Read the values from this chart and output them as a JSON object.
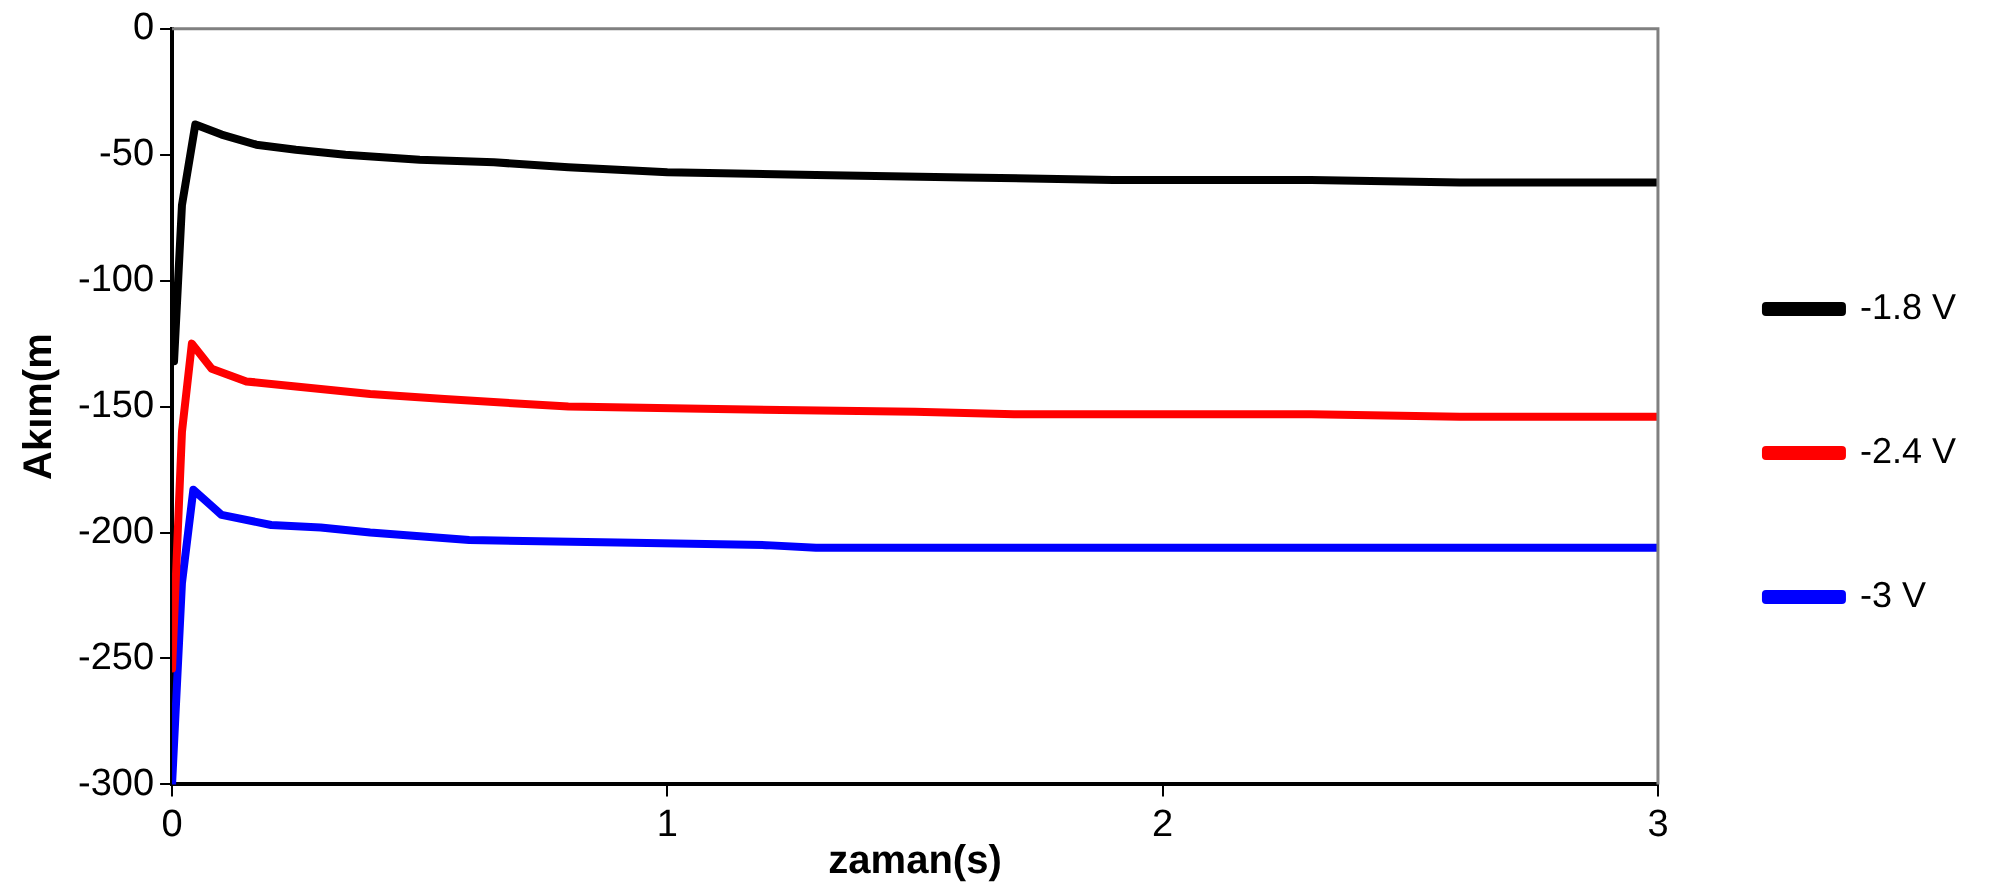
{
  "chart_data": {
    "type": "line",
    "xlabel": "zaman(s)",
    "ylabel": "Akım(m",
    "xlim": [
      0,
      3
    ],
    "xticks": [
      0,
      1,
      2,
      3
    ],
    "ylim": [
      -300,
      0
    ],
    "yticks": [
      0,
      -50,
      -100,
      -150,
      -200,
      -250,
      -300
    ],
    "grid": false,
    "legend": "right",
    "marker": "none",
    "line_style": "solid",
    "series": [
      {
        "name": "-1.8 V",
        "color": "#000000",
        "x": [
          0.004,
          0.02,
          0.047,
          0.1,
          0.17,
          0.25,
          0.35,
          0.5,
          0.65,
          0.8,
          1.0,
          1.3,
          1.6,
          1.9,
          2.3,
          2.6,
          3.0
        ],
        "values": [
          -132,
          -70,
          -38,
          -42,
          -46,
          -48,
          -50,
          -52,
          -53,
          -55,
          -57,
          -58,
          -59,
          -60,
          -60,
          -61,
          -61
        ]
      },
      {
        "name": "-2.4 V",
        "color": "#ff0000",
        "x": [
          0.0,
          0.02,
          0.04,
          0.08,
          0.15,
          0.25,
          0.4,
          0.55,
          0.8,
          1.1,
          1.5,
          1.7,
          2.0,
          2.3,
          2.6,
          3.0
        ],
        "values": [
          -254,
          -160,
          -125,
          -135,
          -140,
          -142,
          -145,
          -147,
          -150,
          -151,
          -152,
          -153,
          -153,
          -153,
          -154,
          -154
        ]
      },
      {
        "name": "-3 V",
        "color": "#0000ff",
        "x": [
          0.0,
          0.02,
          0.043,
          0.1,
          0.2,
          0.3,
          0.4,
          0.6,
          0.9,
          1.2,
          1.3,
          1.8,
          2.4,
          3.0
        ],
        "values": [
          -300,
          -220,
          -183,
          -193,
          -197,
          -198,
          -200,
          -203,
          -204,
          -205,
          -206,
          -206,
          -206,
          -206
        ]
      }
    ]
  }
}
